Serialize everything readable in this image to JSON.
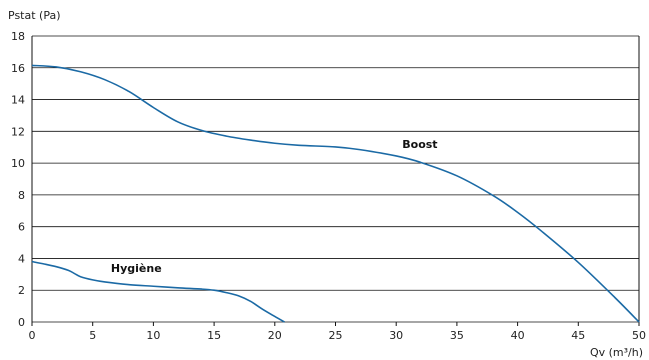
{
  "chart_data": {
    "type": "line",
    "ylabel": "Pstat (Pa)",
    "xlabel": "Qv (m³/h)",
    "xlim": [
      0,
      50
    ],
    "ylim": [
      0,
      18
    ],
    "x_ticks": [
      "0",
      "5",
      "10",
      "15",
      "20",
      "25",
      "30",
      "35",
      "40",
      "45",
      "50"
    ],
    "y_ticks": [
      "0",
      "2",
      "4",
      "6",
      "8",
      "10",
      "12",
      "14",
      "16",
      "18"
    ],
    "grid": "horizontal",
    "line_color": "#1b6aa5",
    "series": [
      {
        "name": "Boost",
        "points": [
          [
            0,
            16.15
          ],
          [
            2,
            16.05
          ],
          [
            4,
            15.75
          ],
          [
            6,
            15.25
          ],
          [
            8,
            14.5
          ],
          [
            10,
            13.5
          ],
          [
            12,
            12.6
          ],
          [
            14,
            12.05
          ],
          [
            16,
            11.7
          ],
          [
            18,
            11.45
          ],
          [
            20,
            11.25
          ],
          [
            22,
            11.12
          ],
          [
            25,
            11.02
          ],
          [
            27,
            10.85
          ],
          [
            30,
            10.45
          ],
          [
            32,
            10.05
          ],
          [
            35,
            9.2
          ],
          [
            38,
            7.95
          ],
          [
            40,
            6.9
          ],
          [
            42,
            5.7
          ],
          [
            45,
            3.75
          ],
          [
            48,
            1.55
          ],
          [
            50,
            0
          ]
        ]
      },
      {
        "name": "Hygiène",
        "points": [
          [
            0,
            3.8
          ],
          [
            1,
            3.65
          ],
          [
            2,
            3.48
          ],
          [
            3,
            3.25
          ],
          [
            3.5,
            3.05
          ],
          [
            4,
            2.85
          ],
          [
            5,
            2.65
          ],
          [
            6,
            2.52
          ],
          [
            8,
            2.35
          ],
          [
            10,
            2.25
          ],
          [
            12,
            2.15
          ],
          [
            14,
            2.07
          ],
          [
            15,
            2.0
          ],
          [
            16,
            1.85
          ],
          [
            17,
            1.65
          ],
          [
            18,
            1.3
          ],
          [
            19,
            0.8
          ],
          [
            20,
            0.35
          ],
          [
            20.8,
            0
          ]
        ]
      }
    ]
  }
}
